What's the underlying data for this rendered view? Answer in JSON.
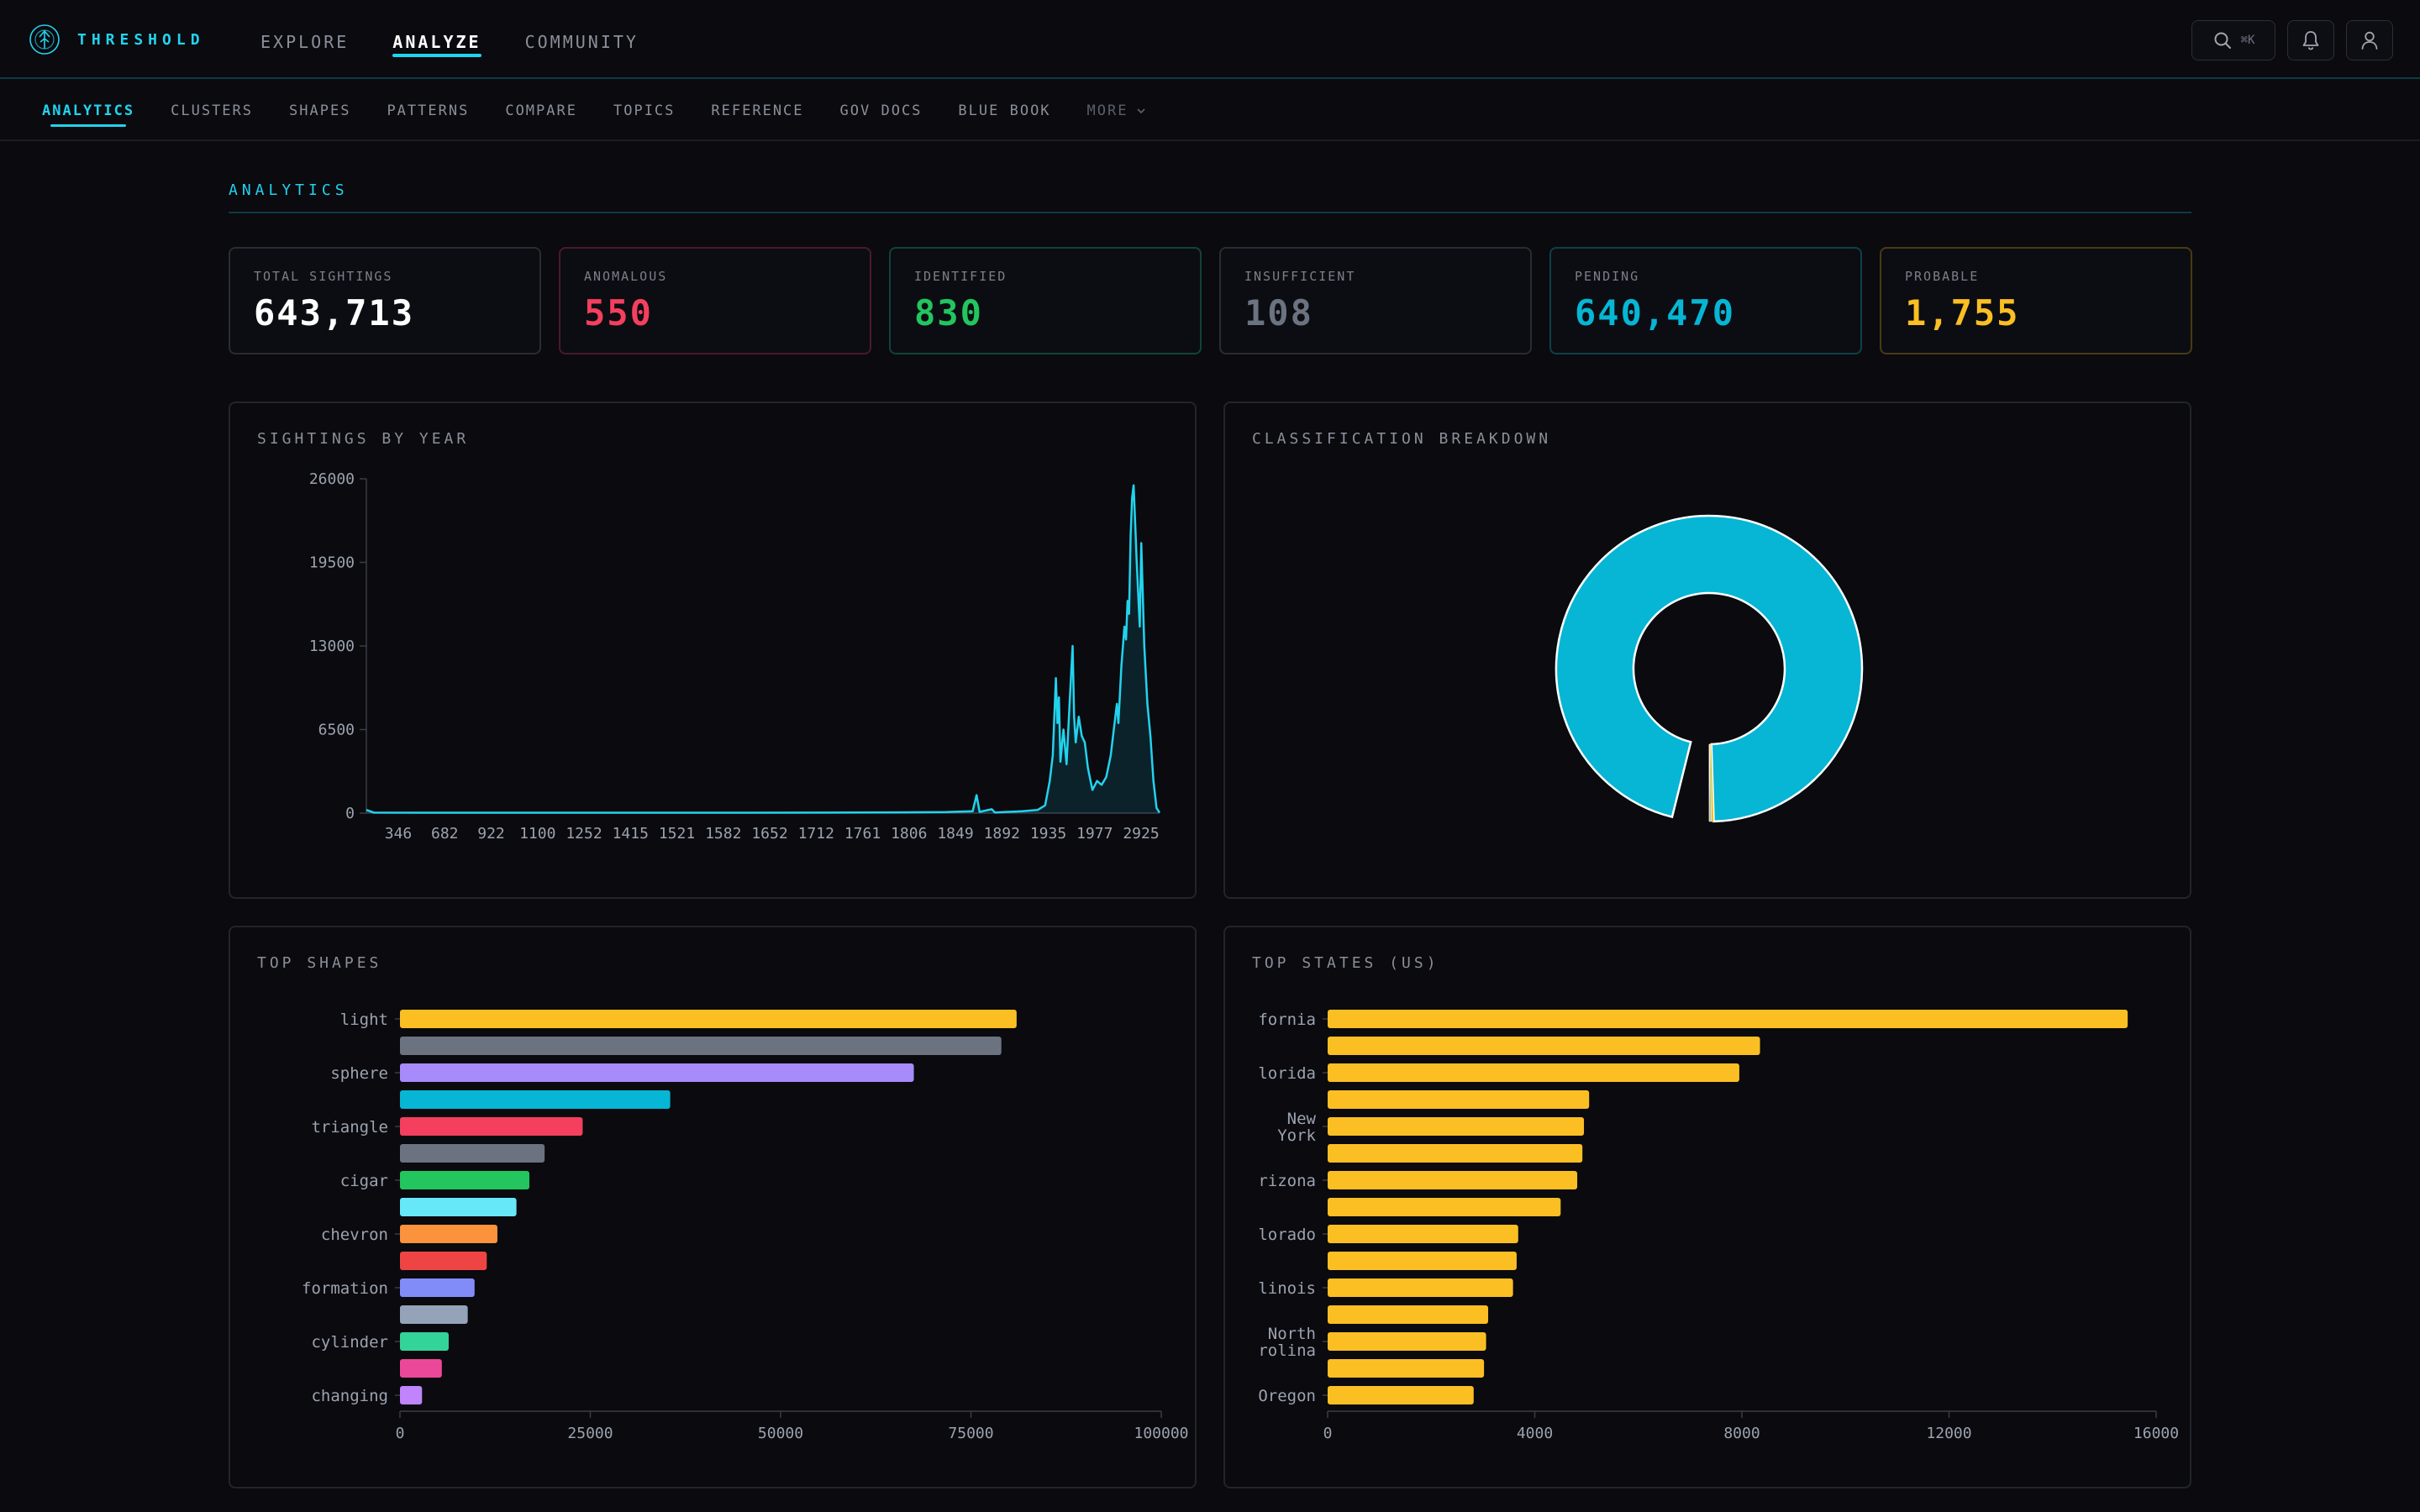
{
  "brand": {
    "name": "THRESHOLD",
    "color": "#22d3ee"
  },
  "main_nav": [
    {
      "label": "EXPLORE",
      "active": false
    },
    {
      "label": "ANALYZE",
      "active": true
    },
    {
      "label": "COMMUNITY",
      "active": false
    }
  ],
  "header_actions": {
    "search_shortcut": "⌘K",
    "icons": [
      "search-icon",
      "bell-icon",
      "user-icon"
    ]
  },
  "sub_nav": [
    {
      "label": "ANALYTICS",
      "active": true
    },
    {
      "label": "CLUSTERS",
      "active": false
    },
    {
      "label": "SHAPES",
      "active": false
    },
    {
      "label": "PATTERNS",
      "active": false
    },
    {
      "label": "COMPARE",
      "active": false
    },
    {
      "label": "TOPICS",
      "active": false
    },
    {
      "label": "REFERENCE",
      "active": false
    },
    {
      "label": "GOV DOCS",
      "active": false
    },
    {
      "label": "BLUE BOOK",
      "active": false
    },
    {
      "label": "MORE",
      "active": false
    }
  ],
  "section": {
    "title": "ANALYTICS"
  },
  "stats": [
    {
      "label": "TOTAL SIGHTINGS",
      "value": "643,713",
      "color": "#ffffff",
      "border": "#2a2c33"
    },
    {
      "label": "ANOMALOUS",
      "value": "550",
      "color": "#f43f5e",
      "border": "#4a1a2a"
    },
    {
      "label": "IDENTIFIED",
      "value": "830",
      "color": "#22c55e",
      "border": "#10433a"
    },
    {
      "label": "INSUFFICIENT",
      "value": "108",
      "color": "#6b7280",
      "border": "#2a2c33"
    },
    {
      "label": "PENDING",
      "value": "640,470",
      "color": "#06b6d4",
      "border": "#0d4048"
    },
    {
      "label": "PROBABLE",
      "value": "1,755",
      "color": "#fbbf24",
      "border": "#4a3a14"
    }
  ],
  "panels": {
    "by_year": "SIGHTINGS BY YEAR",
    "classification": "CLASSIFICATION BREAKDOWN",
    "top_shapes": "TOP SHAPES",
    "top_states": "TOP STATES (US)"
  },
  "chart_data": [
    {
      "id": "sightings_by_year",
      "type": "area",
      "title": "SIGHTINGS BY YEAR",
      "color": "#22d3ee",
      "ylim": [
        0,
        26000
      ],
      "y_ticks": [
        0,
        6500,
        13000,
        19500,
        26000
      ],
      "x_tick_labels": [
        "346",
        "682",
        "922",
        "1100",
        "1252",
        "1415",
        "1521",
        "1582",
        "1652",
        "1712",
        "1761",
        "1806",
        "1849",
        "1892",
        "1935",
        "1977",
        "2925"
      ],
      "x_index_range": [
        0,
        1000
      ],
      "points": [
        [
          0,
          250
        ],
        [
          10,
          40
        ],
        [
          100,
          30
        ],
        [
          200,
          30
        ],
        [
          300,
          30
        ],
        [
          400,
          30
        ],
        [
          500,
          35
        ],
        [
          600,
          40
        ],
        [
          700,
          60
        ],
        [
          760,
          80
        ],
        [
          795,
          150
        ],
        [
          800,
          1400
        ],
        [
          804,
          100
        ],
        [
          820,
          300
        ],
        [
          824,
          50
        ],
        [
          860,
          150
        ],
        [
          880,
          250
        ],
        [
          890,
          600
        ],
        [
          896,
          2500
        ],
        [
          900,
          4500
        ],
        [
          904,
          10500
        ],
        [
          906,
          7000
        ],
        [
          908,
          9000
        ],
        [
          910,
          4000
        ],
        [
          914,
          6500
        ],
        [
          918,
          3800
        ],
        [
          922,
          8500
        ],
        [
          926,
          13000
        ],
        [
          928,
          7500
        ],
        [
          930,
          5500
        ],
        [
          934,
          7500
        ],
        [
          938,
          6000
        ],
        [
          942,
          5500
        ],
        [
          946,
          3500
        ],
        [
          952,
          1800
        ],
        [
          958,
          2500
        ],
        [
          964,
          2200
        ],
        [
          970,
          2800
        ],
        [
          976,
          4500
        ],
        [
          980,
          6500
        ],
        [
          984,
          8500
        ],
        [
          986,
          7000
        ],
        [
          990,
          11500
        ],
        [
          994,
          14500
        ],
        [
          996,
          13500
        ],
        [
          998,
          16500
        ],
        [
          1000,
          15500
        ],
        [
          1002,
          21500
        ],
        [
          1004,
          24500
        ],
        [
          1006,
          25500
        ],
        [
          1008,
          22500
        ],
        [
          1010,
          19500
        ],
        [
          1014,
          14500
        ],
        [
          1016,
          21000
        ],
        [
          1020,
          13000
        ],
        [
          1024,
          8500
        ],
        [
          1028,
          6000
        ],
        [
          1032,
          2500
        ],
        [
          1036,
          400
        ],
        [
          1040,
          30
        ]
      ]
    },
    {
      "id": "classification_breakdown",
      "type": "pie",
      "title": "CLASSIFICATION BREAKDOWN",
      "donut": true,
      "slices": [
        {
          "label": "Pending",
          "value": 640470,
          "color": "#06b6d4"
        },
        {
          "label": "Probable",
          "value": 1755,
          "color": "#fbbf24"
        },
        {
          "label": "Identified",
          "value": 830,
          "color": "#22c55e"
        },
        {
          "label": "Anomalous",
          "value": 550,
          "color": "#f43f5e"
        },
        {
          "label": "Insufficient",
          "value": 108,
          "color": "#6b7280"
        }
      ],
      "gap_start_deg": 90,
      "gap_end_deg": 104
    },
    {
      "id": "top_shapes",
      "type": "bar",
      "orientation": "horizontal",
      "title": "TOP SHAPES",
      "xlim": [
        0,
        100000
      ],
      "x_ticks": [
        0,
        25000,
        50000,
        75000,
        100000
      ],
      "categories": [
        "light",
        "",
        "sphere",
        "",
        "triangle",
        "",
        "cigar",
        "",
        "chevron",
        "",
        "formation",
        "",
        "cylinder",
        "",
        "changing"
      ],
      "values": [
        81000,
        79000,
        67500,
        35500,
        24000,
        19000,
        17000,
        15300,
        12800,
        11400,
        9800,
        8900,
        6400,
        5500,
        2900
      ],
      "colors": [
        "#fbbf24",
        "#6b7280",
        "#a78bfa",
        "#06b6d4",
        "#f43f5e",
        "#6b7280",
        "#22c55e",
        "#67e8f9",
        "#fb923c",
        "#ef4444",
        "#818cf8",
        "#94a3b8",
        "#34d399",
        "#ec4899",
        "#c084fc"
      ]
    },
    {
      "id": "top_states",
      "type": "bar",
      "orientation": "horizontal",
      "title": "TOP STATES (US)",
      "xlim": [
        0,
        16000
      ],
      "x_ticks": [
        0,
        4000,
        8000,
        12000,
        16000
      ],
      "categories": [
        "fornia",
        "",
        "lorida",
        "",
        "New York",
        "",
        "rizona",
        "",
        "lorado",
        "",
        "linois",
        "",
        "North rolina",
        "",
        "Oregon"
      ],
      "values": [
        15450,
        8350,
        7950,
        5050,
        4950,
        4920,
        4820,
        4500,
        3680,
        3650,
        3580,
        3100,
        3060,
        3020,
        2820
      ],
      "colors": [
        "#fbbf24",
        "#fbbf24",
        "#fbbf24",
        "#fbbf24",
        "#fbbf24",
        "#fbbf24",
        "#fbbf24",
        "#fbbf24",
        "#fbbf24",
        "#fbbf24",
        "#fbbf24",
        "#fbbf24",
        "#fbbf24",
        "#fbbf24",
        "#fbbf24"
      ]
    }
  ]
}
